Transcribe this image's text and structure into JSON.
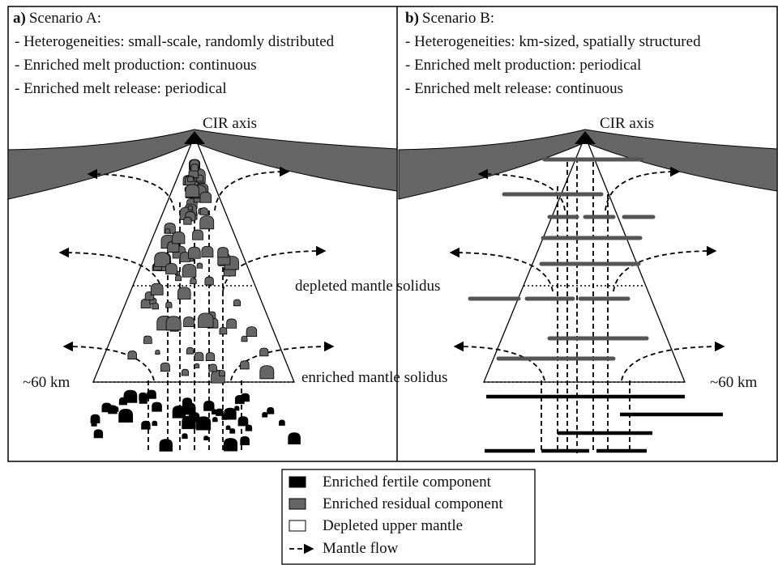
{
  "panels": [
    {
      "label": "a)",
      "title": "Scenario A:",
      "lines": [
        "- Heterogeneities: small-scale, randomly distributed",
        "- Enriched melt production: continuous",
        "- Enriched melt release: periodical"
      ],
      "axis_label": "CIR axis",
      "depth_label": "~60 km"
    },
    {
      "label": "b)",
      "title": "Scenario B:",
      "lines": [
        "- Heterogeneities: km-sized, spatially structured",
        "- Enriched melt production: periodical",
        "- Enriched melt release: continuous"
      ],
      "axis_label": "CIR axis",
      "depth_label": "~60 km"
    }
  ],
  "solidus_labels": {
    "depleted": "depleted mantle solidus",
    "enriched": "enriched mantle solidus"
  },
  "legend": [
    {
      "label": "Enriched fertile component"
    },
    {
      "label": "Enriched residual component"
    },
    {
      "label": "Depleted upper mantle"
    },
    {
      "label": "Mantle flow"
    }
  ]
}
